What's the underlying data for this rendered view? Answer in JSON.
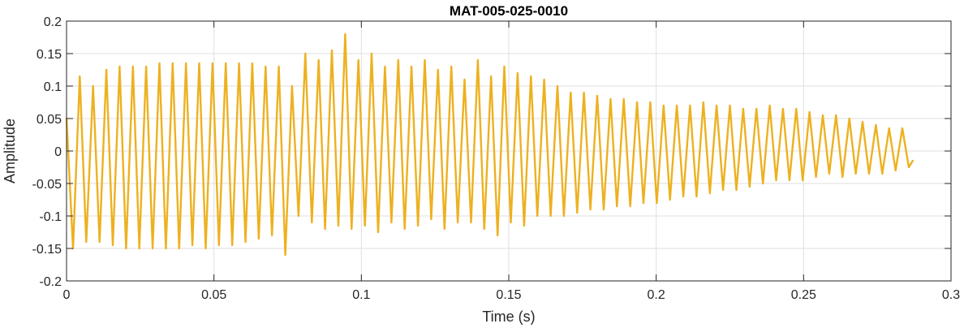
{
  "chart_data": {
    "type": "line",
    "title": "MAT-005-025-0010",
    "xlabel": "Time (s)",
    "ylabel": "Amplitude",
    "xlim": [
      0,
      0.3
    ],
    "ylim": [
      -0.2,
      0.2
    ],
    "x_ticks": [
      0,
      0.05,
      0.1,
      0.15,
      0.2,
      0.25,
      0.3
    ],
    "x_tick_labels": [
      "0",
      "0.05",
      "0.1",
      "0.15",
      "0.2",
      "0.25",
      "0.3"
    ],
    "y_ticks": [
      -0.2,
      -0.15,
      -0.1,
      -0.05,
      0,
      0.05,
      0.1,
      0.15,
      0.2
    ],
    "y_tick_labels": [
      "-0.2",
      "-0.15",
      "-0.1",
      "-0.05",
      "0",
      "0.05",
      "0.1",
      "0.15",
      "0.2"
    ],
    "grid": true,
    "line_color": "#EDB120",
    "series": [
      {
        "x": [
          0,
          0.0022,
          0.0045,
          0.0067,
          0.009,
          0.0112,
          0.0135,
          0.0157,
          0.018,
          0.0202,
          0.0225,
          0.0247,
          0.027,
          0.0292,
          0.0315,
          0.0337,
          0.036,
          0.0382,
          0.0405,
          0.0427,
          0.045,
          0.0472,
          0.0495,
          0.0517,
          0.054,
          0.0562,
          0.0585,
          0.0607,
          0.063,
          0.0652,
          0.0675,
          0.0697,
          0.072,
          0.0742,
          0.0765,
          0.0787,
          0.081,
          0.0832,
          0.0855,
          0.0877,
          0.09,
          0.0922,
          0.0945,
          0.0967,
          0.099,
          0.1012,
          0.1035,
          0.1057,
          0.108,
          0.1102,
          0.1125,
          0.1147,
          0.117,
          0.1192,
          0.1215,
          0.1237,
          0.126,
          0.1282,
          0.1305,
          0.1327,
          0.135,
          0.1372,
          0.1395,
          0.1417,
          0.144,
          0.1462,
          0.1485,
          0.1507,
          0.153,
          0.1552,
          0.1575,
          0.1597,
          0.162,
          0.1642,
          0.1665,
          0.1687,
          0.171,
          0.1732,
          0.1755,
          0.1777,
          0.18,
          0.1822,
          0.1845,
          0.1867,
          0.189,
          0.1912,
          0.1935,
          0.1957,
          0.198,
          0.2002,
          0.2025,
          0.2047,
          0.207,
          0.2092,
          0.2115,
          0.2137,
          0.216,
          0.2182,
          0.2205,
          0.2227,
          0.225,
          0.2272,
          0.2295,
          0.2317,
          0.234,
          0.2362,
          0.2385,
          0.2407,
          0.243,
          0.2452,
          0.2475,
          0.2497,
          0.252,
          0.2542,
          0.2565,
          0.2587,
          0.261,
          0.2632,
          0.2655,
          0.2677,
          0.27,
          0.2722,
          0.2745,
          0.2767,
          0.279,
          0.2812,
          0.2835,
          0.2857,
          0.287
        ],
        "y": [
          0.05,
          -0.15,
          0.115,
          -0.14,
          0.1,
          -0.14,
          0.125,
          -0.145,
          0.13,
          -0.15,
          0.13,
          -0.15,
          0.13,
          -0.15,
          0.135,
          -0.15,
          0.135,
          -0.15,
          0.135,
          -0.145,
          0.135,
          -0.15,
          0.135,
          -0.145,
          0.135,
          -0.145,
          0.135,
          -0.14,
          0.135,
          -0.135,
          0.13,
          -0.13,
          0.13,
          -0.16,
          0.1,
          -0.1,
          0.15,
          -0.11,
          0.14,
          -0.12,
          0.155,
          -0.115,
          0.18,
          -0.12,
          0.14,
          -0.115,
          0.15,
          -0.125,
          0.13,
          -0.11,
          0.14,
          -0.12,
          0.13,
          -0.115,
          0.14,
          -0.105,
          0.125,
          -0.12,
          0.13,
          -0.11,
          0.11,
          -0.11,
          0.14,
          -0.12,
          0.115,
          -0.13,
          0.13,
          -0.11,
          0.12,
          -0.115,
          0.115,
          -0.1,
          0.11,
          -0.1,
          0.1,
          -0.1,
          0.09,
          -0.095,
          0.09,
          -0.09,
          0.085,
          -0.09,
          0.08,
          -0.085,
          0.08,
          -0.085,
          0.075,
          -0.08,
          0.075,
          -0.08,
          0.07,
          -0.075,
          0.07,
          -0.07,
          0.07,
          -0.07,
          0.075,
          -0.065,
          0.07,
          -0.06,
          0.07,
          -0.06,
          0.065,
          -0.055,
          0.065,
          -0.05,
          0.07,
          -0.045,
          0.065,
          -0.045,
          0.065,
          -0.045,
          0.06,
          -0.04,
          0.055,
          -0.035,
          0.055,
          -0.04,
          0.05,
          -0.035,
          0.045,
          -0.035,
          0.04,
          -0.035,
          0.035,
          -0.03,
          0.035,
          -0.025,
          -0.015
        ]
      }
    ]
  }
}
